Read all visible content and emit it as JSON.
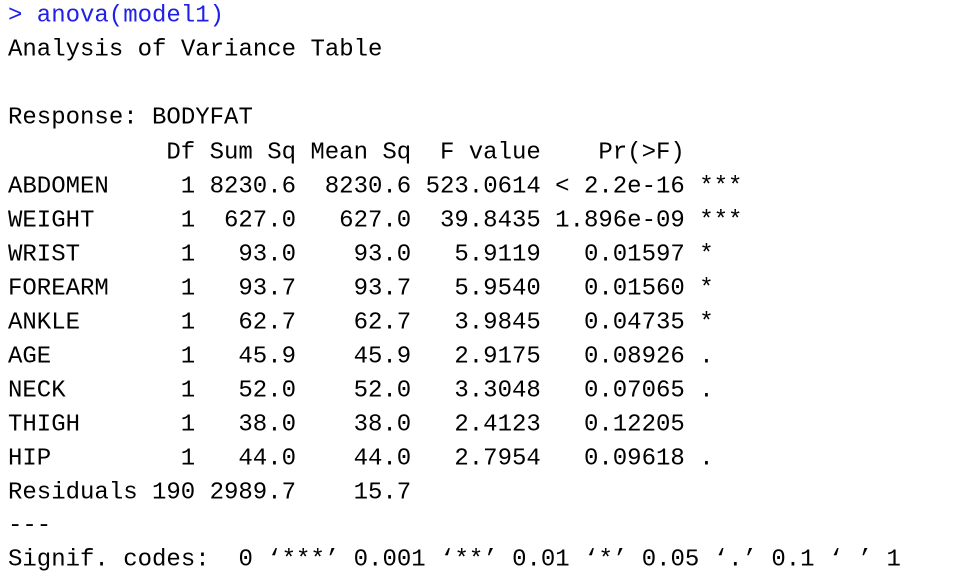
{
  "console": {
    "prompt": ">",
    "command": "anova(model1)"
  },
  "output": {
    "title": "Analysis of Variance Table",
    "response": "Response: BODYFAT",
    "table": {
      "header": [
        "Df",
        "Sum Sq",
        "Mean Sq",
        "F value",
        "Pr(>F)"
      ],
      "rows": [
        {
          "label": "ABDOMEN",
          "df": "1",
          "sum_sq": "8230.6",
          "mean_sq": "8230.6",
          "f_value": "523.0614",
          "p_value": "< 2.2e-16",
          "signif": "***"
        },
        {
          "label": "WEIGHT",
          "df": "1",
          "sum_sq": "627.0",
          "mean_sq": "627.0",
          "f_value": "39.8435",
          "p_value": "1.896e-09",
          "signif": "***"
        },
        {
          "label": "WRIST",
          "df": "1",
          "sum_sq": "93.0",
          "mean_sq": "93.0",
          "f_value": "5.9119",
          "p_value": "0.01597",
          "signif": "*"
        },
        {
          "label": "FOREARM",
          "df": "1",
          "sum_sq": "93.7",
          "mean_sq": "93.7",
          "f_value": "5.9540",
          "p_value": "0.01560",
          "signif": "*"
        },
        {
          "label": "ANKLE",
          "df": "1",
          "sum_sq": "62.7",
          "mean_sq": "62.7",
          "f_value": "3.9845",
          "p_value": "0.04735",
          "signif": "*"
        },
        {
          "label": "AGE",
          "df": "1",
          "sum_sq": "45.9",
          "mean_sq": "45.9",
          "f_value": "2.9175",
          "p_value": "0.08926",
          "signif": "."
        },
        {
          "label": "NECK",
          "df": "1",
          "sum_sq": "52.0",
          "mean_sq": "52.0",
          "f_value": "3.3048",
          "p_value": "0.07065",
          "signif": "."
        },
        {
          "label": "THIGH",
          "df": "1",
          "sum_sq": "38.0",
          "mean_sq": "38.0",
          "f_value": "2.4123",
          "p_value": "0.12205"
        },
        {
          "label": "HIP",
          "df": "1",
          "sum_sq": "44.0",
          "mean_sq": "44.0",
          "f_value": "2.7954",
          "p_value": "0.09618",
          "signif": "."
        },
        {
          "label": "Residuals",
          "df": "190",
          "sum_sq": "2989.7",
          "mean_sq": "15.7"
        }
      ]
    },
    "separator": "---",
    "signif_codes": "Signif. codes:  0 ‘***’ 0.001 ‘**’ 0.01 ‘*’ 0.05 ‘.’ 0.1 ‘ ’ 1"
  }
}
